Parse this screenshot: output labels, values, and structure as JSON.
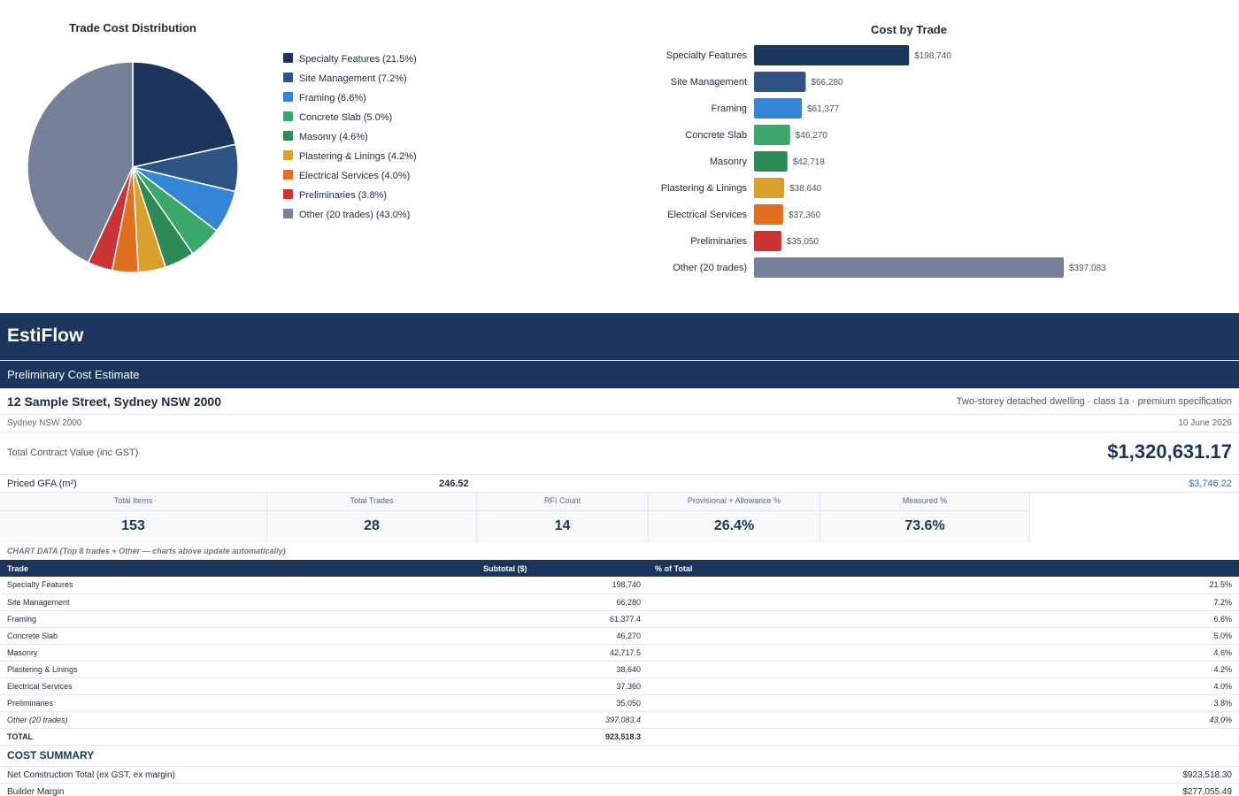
{
  "chart_data": [
    {
      "type": "pie",
      "title": "Trade Cost Distribution",
      "legend_position": "right",
      "categories": [
        "Specialty Features",
        "Site Management",
        "Framing",
        "Concrete Slab",
        "Masonry",
        "Plastering & Linings",
        "Electrical Services",
        "Preliminaries",
        "Other (20 trades)"
      ],
      "values": [
        21.5,
        7.2,
        6.6,
        5.0,
        4.6,
        4.2,
        4.0,
        3.8,
        43.0
      ],
      "legend_labels": [
        "Specialty Features (21.5%)",
        "Site Management (7.2%)",
        "Framing (6.6%)",
        "Concrete Slab (5.0%)",
        "Masonry (4.6%)",
        "Plastering & Linings (4.2%)",
        "Electrical Services (4.0%)",
        "Preliminaries (3.8%)",
        "Other (20 trades) (43.0%)"
      ],
      "colors": [
        "#1b355c",
        "#2d5485",
        "#3385d6",
        "#3aa76d",
        "#2e8b57",
        "#d9a12b",
        "#e07020",
        "#cc3333",
        "#758198"
      ]
    },
    {
      "type": "bar",
      "orientation": "horizontal",
      "title": "Cost by Trade",
      "categories": [
        "Specialty Features",
        "Site Management",
        "Framing",
        "Concrete Slab",
        "Masonry",
        "Plastering & Linings",
        "Electrical Services",
        "Preliminaries",
        "Other (20 trades)"
      ],
      "values": [
        198740,
        66280,
        61377,
        46270,
        42718,
        38640,
        37360,
        35050,
        397083
      ],
      "value_labels": [
        "$198,740",
        "$66,280",
        "$61,377",
        "$46,270",
        "$42,718",
        "$38,640",
        "$37,360",
        "$35,050",
        "$397,083"
      ],
      "colors": [
        "#1b355c",
        "#2d5485",
        "#3385d6",
        "#3aa76d",
        "#2e8b57",
        "#d9a12b",
        "#e07020",
        "#cc3333",
        "#758198"
      ]
    }
  ],
  "header": {
    "brand": "EstiFlow",
    "subtitle": "Preliminary Cost Estimate"
  },
  "project": {
    "address": "12 Sample Street, Sydney NSW 2000",
    "description": "Two-storey detached dwelling · class 1a · premium specification",
    "location": "Sydney NSW 2000",
    "date": "10 June 2026",
    "total_contract_label": "Total Contract Value (inc GST)",
    "total_contract_value": "$1,320,631.17",
    "gfa_label": "Priced GFA (m²)",
    "gfa_value": "246.52",
    "rate_per_m2": "$3,746.22"
  },
  "kpis": [
    {
      "label": "Total Items",
      "value": "153"
    },
    {
      "label": "Total Trades",
      "value": "28"
    },
    {
      "label": "RFI Count",
      "value": "14"
    },
    {
      "label": "Provisional + Allowance %",
      "value": "26.4%"
    },
    {
      "label": "Measured %",
      "value": "73.6%"
    }
  ],
  "chart_note": "CHART DATA (Top 8 trades + Other — charts above update automatically)",
  "trade_table": {
    "headers": [
      "Trade",
      "Subtotal ($)",
      "% of Total"
    ],
    "rows": [
      {
        "trade": "Specialty Features",
        "subtotal": "198,740",
        "pct": "21.5%"
      },
      {
        "trade": "Site Management",
        "subtotal": "66,280",
        "pct": "7.2%"
      },
      {
        "trade": "Framing",
        "subtotal": "61,377.4",
        "pct": "6.6%"
      },
      {
        "trade": "Concrete Slab",
        "subtotal": "46,270",
        "pct": "5.0%"
      },
      {
        "trade": "Masonry",
        "subtotal": "42,717.5",
        "pct": "4.6%"
      },
      {
        "trade": "Plastering & Linings",
        "subtotal": "38,640",
        "pct": "4.2%"
      },
      {
        "trade": "Electrical Services",
        "subtotal": "37,360",
        "pct": "4.0%"
      },
      {
        "trade": "Preliminaries",
        "subtotal": "35,050",
        "pct": "3.8%"
      },
      {
        "trade": "Other (20 trades)",
        "subtotal": "397,083.4",
        "pct": "43.0%"
      }
    ],
    "total": {
      "trade": "TOTAL",
      "subtotal": "923,518.3",
      "pct": ""
    }
  },
  "cost_summary": {
    "title": "COST SUMMARY",
    "rows": [
      {
        "label": "Net Construction Total (ex GST, ex margin)",
        "value": "$923,518.30"
      },
      {
        "label": "Builder Margin",
        "value": "$277,055.49"
      }
    ]
  }
}
